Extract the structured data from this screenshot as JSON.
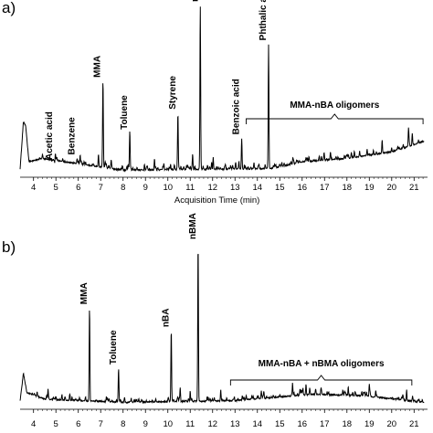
{
  "chart_data": [
    {
      "type": "line",
      "panel_label": "a)",
      "xlabel": "Acquisition Time (min)",
      "ylabel": "",
      "xlim": [
        3.4,
        21.6
      ],
      "ylim": [
        0,
        1.0
      ],
      "x_ticks": [
        "4",
        "5",
        "6",
        "7",
        "8",
        "9",
        "10",
        "11",
        "12",
        "13",
        "14",
        "15",
        "16",
        "17",
        "18",
        "19",
        "20",
        "21"
      ],
      "grid": false,
      "peaks": [
        {
          "label": "Acetic acid",
          "x": 4.95,
          "y": 0.06
        },
        {
          "label": "Benzene",
          "x": 5.95,
          "y": 0.09
        },
        {
          "label": "MMA",
          "x": 7.1,
          "y": 0.55
        },
        {
          "label": "Toluene",
          "x": 8.3,
          "y": 0.24
        },
        {
          "label": "Styrene",
          "x": 10.45,
          "y": 0.36
        },
        {
          "label": "nBA",
          "x": 11.45,
          "y": 1.0
        },
        {
          "label": "Benzoic acid",
          "x": 13.3,
          "y": 0.21
        },
        {
          "label": "Phthalic anhydride",
          "x": 14.5,
          "y": 0.77
        }
      ],
      "group": {
        "label": "MMA-nBA oligomers",
        "x_start": 13.5,
        "x_end": 21.4
      },
      "baseline": [
        [
          3.4,
          0.03
        ],
        [
          3.55,
          0.31
        ],
        [
          3.65,
          0.28
        ],
        [
          3.8,
          0.07
        ],
        [
          4.4,
          0.09
        ],
        [
          8.0,
          0.02
        ],
        [
          14.6,
          0.03
        ],
        [
          16.0,
          0.07
        ],
        [
          18.0,
          0.09
        ],
        [
          20.0,
          0.13
        ],
        [
          21.4,
          0.19
        ]
      ]
    },
    {
      "type": "line",
      "panel_label": "b)",
      "xlabel": "",
      "ylabel": "",
      "xlim": [
        3.4,
        21.6
      ],
      "ylim": [
        0,
        1.0
      ],
      "x_ticks": [
        "4",
        "5",
        "6",
        "7",
        "8",
        "9",
        "10",
        "11",
        "12",
        "13",
        "14",
        "15",
        "16",
        "17",
        "18",
        "19",
        "20",
        "21"
      ],
      "grid": false,
      "peaks": [
        {
          "label": "MMA",
          "x": 6.5,
          "y": 0.6
        },
        {
          "label": "Toluene",
          "x": 7.8,
          "y": 0.23
        },
        {
          "label": "nBA",
          "x": 10.15,
          "y": 0.46
        },
        {
          "label": "nBMA",
          "x": 11.35,
          "y": 1.0
        }
      ],
      "group": {
        "label": "MMA-nBA + nBMA oligomers",
        "x_start": 12.8,
        "x_end": 20.9
      },
      "baseline": [
        [
          3.4,
          0.03
        ],
        [
          3.55,
          0.2
        ],
        [
          3.7,
          0.08
        ],
        [
          4.5,
          0.04
        ],
        [
          8.0,
          0.02
        ],
        [
          13.0,
          0.03
        ],
        [
          16.5,
          0.07
        ],
        [
          18.8,
          0.06
        ],
        [
          21.4,
          0.02
        ]
      ]
    }
  ]
}
